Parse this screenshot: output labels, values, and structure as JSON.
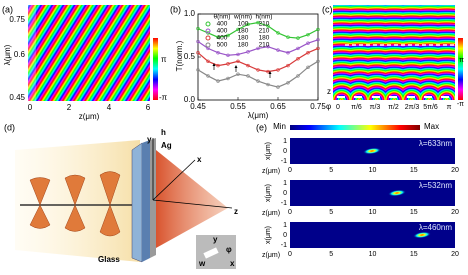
{
  "panel_labels": [
    "(a)",
    "(b)",
    "(c)",
    "(d)",
    "(e)"
  ],
  "panel_a": {
    "y_label": "λ(μm)",
    "x_label": "z(μm)",
    "y_ticks": [
      "0.75",
      "0.6",
      "0.45"
    ],
    "x_ticks": [
      "0",
      "2",
      "4",
      "6"
    ],
    "colorbar": [
      "π",
      "-π"
    ]
  },
  "chart_data": {
    "type": "line",
    "y_label": "T(norm.)",
    "x_label": "λ(μm)",
    "legend_header": [
      "θ(nm)",
      "w(nm)",
      "h(nm)"
    ],
    "x": [
      0.45,
      0.475,
      0.5,
      0.525,
      0.55,
      0.575,
      0.6,
      0.625,
      0.65,
      0.675,
      0.7,
      0.725,
      0.75
    ],
    "series": [
      {
        "theta": 400,
        "w": 100,
        "h": 210,
        "color": "#33c433",
        "values": [
          0.83,
          0.78,
          0.73,
          0.75,
          0.82,
          0.88,
          0.9,
          0.86,
          0.78,
          0.73,
          0.72,
          0.76,
          0.82
        ]
      },
      {
        "theta": 400,
        "w": 180,
        "h": 210,
        "color": "#9a55c8",
        "values": [
          0.68,
          0.6,
          0.55,
          0.52,
          0.53,
          0.56,
          0.6,
          0.62,
          0.58,
          0.55,
          0.6,
          0.66,
          0.7
        ]
      },
      {
        "theta": 400,
        "w": 180,
        "h": 180,
        "color": "#d83a3a",
        "values": [
          0.55,
          0.45,
          0.4,
          0.42,
          0.45,
          0.4,
          0.35,
          0.33,
          0.35,
          0.4,
          0.48,
          0.55,
          0.6
        ]
      },
      {
        "theta": 500,
        "w": 180,
        "h": 210,
        "color": "#888888",
        "values": [
          0.35,
          0.28,
          0.22,
          0.25,
          0.3,
          0.28,
          0.22,
          0.18,
          0.15,
          0.2,
          0.28,
          0.38,
          0.45
        ]
      }
    ],
    "xlim": [
      0.45,
      0.75
    ],
    "ylim": [
      0,
      1
    ],
    "xticks": [
      0.45,
      0.55,
      0.65,
      0.75
    ],
    "yticks": [
      {
        "value": 0,
        "label": "0.0"
      },
      0.5,
      {
        "value": 1,
        "label": "1.0"
      }
    ]
  },
  "panel_c": {
    "x_prefix": "φ",
    "x_ticks": [
      "0",
      "π/6",
      "π/3",
      "π/2",
      "2π/3",
      "5π/6",
      "π"
    ],
    "z_label": "z",
    "colorbar": [
      "π",
      "-π"
    ]
  },
  "panel_d": {
    "y": "y",
    "h": "h",
    "ag": "Ag",
    "x": "x",
    "z": "z",
    "glass": "Glass",
    "inset_y": "y",
    "phi": "φ",
    "inset_x": "x",
    "w": "w"
  },
  "panel_e": {
    "colorbar": [
      "Min",
      "Max"
    ],
    "y_label": "x(μm)",
    "y_ticks": [
      "1",
      "0",
      "-1"
    ],
    "x_label": "z(μm)",
    "x_ticks": [
      "0",
      "5",
      "10",
      "15",
      "20"
    ],
    "plots": [
      {
        "wavelength": "λ=633nm"
      },
      {
        "wavelength": "λ=532nm"
      },
      {
        "wavelength": "λ=460nm"
      }
    ]
  }
}
